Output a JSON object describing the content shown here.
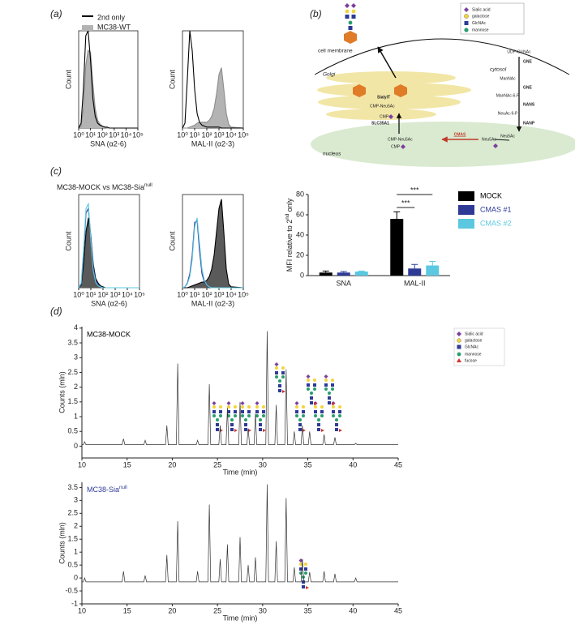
{
  "panels": {
    "a": {
      "label": "(a)"
    },
    "b": {
      "label": "(b)"
    },
    "c": {
      "label": "(c)",
      "title": {
        "text": "MC38-MOCK vs MC38-Sia",
        "sup": "null"
      }
    },
    "d": {
      "label": "(d)",
      "legend": [
        "Sialic acid",
        "galactose",
        "GlcNAc",
        "mannose",
        "fucose"
      ]
    }
  },
  "diagram": {
    "legend": [
      "Sialic acid",
      "galactose",
      "GlcNAc",
      "mannose"
    ],
    "cell_membrane": "cell membrane",
    "cytosol": "cytosol",
    "golgi": "Golgi",
    "nucleus": "nucleus",
    "pathway": [
      "UDP-GlcNAc",
      "ManNAc",
      "ManNAc-6-P",
      "NeuAc-9-P",
      "Neu5Ac"
    ],
    "enzymes": [
      "GNE",
      "GNE",
      "NANS",
      "NANP"
    ],
    "sialylt": "SialylT",
    "golgi_cmp_neu5ac": "CMP-Neu5Ac",
    "golgi_cmp": "CMP",
    "slc35a1": "SLC35A1",
    "nucleus_cmp_neu5ac": "CMP-Neu5Ac",
    "nucleus_cmp": "CMP",
    "cmas": "CMAS",
    "nucleus_neu5ac": "Neu5Ac"
  },
  "chart_data": [
    {
      "type": "line",
      "xscale": "log",
      "frame": true,
      "legend": "upper left",
      "x": [
        1,
        1.6,
        2.5,
        4,
        6.3,
        10,
        16,
        25,
        40,
        63,
        100,
        160,
        250,
        400,
        630,
        1000,
        1600,
        2500,
        4000,
        6300,
        10000,
        100000
      ],
      "xlim": [
        1,
        100000
      ],
      "xticks": [
        {
          "value": 1,
          "label": "10⁰"
        },
        {
          "value": 10,
          "label": "10¹"
        },
        {
          "value": 100,
          "label": "10²"
        },
        {
          "value": 1000,
          "label": "10³"
        },
        {
          "value": 10000,
          "label": "10⁴"
        },
        {
          "value": 100000,
          "label": "10⁵"
        }
      ],
      "ylim": [
        0,
        100
      ],
      "xlabel": "SNA (α2-6)",
      "ylabel": "Count",
      "series": [
        {
          "name": "MC38-WT",
          "color": "#8c8c8c",
          "fill": "#b3b3b3",
          "values": [
            0,
            2,
            20,
            65,
            80,
            78,
            45,
            20,
            8,
            4,
            2,
            1,
            0,
            0,
            0,
            0,
            0,
            0,
            0,
            0,
            0,
            0
          ]
        },
        {
          "name": "2nd only",
          "color": "#000000",
          "values": [
            0,
            5,
            40,
            95,
            100,
            70,
            30,
            12,
            5,
            3,
            2,
            1,
            1,
            0,
            0,
            0,
            0,
            0,
            0,
            0,
            0,
            0
          ]
        }
      ]
    },
    {
      "type": "line",
      "xscale": "log",
      "frame": true,
      "x": [
        1,
        1.6,
        2.5,
        4,
        6.3,
        10,
        16,
        25,
        40,
        63,
        100,
        160,
        250,
        400,
        630,
        1000,
        1600,
        2500,
        4000,
        6300,
        10000,
        100000
      ],
      "xlim": [
        1,
        100000
      ],
      "xticks": [
        {
          "value": 1,
          "label": "10⁰"
        },
        {
          "value": 10,
          "label": "10¹"
        },
        {
          "value": 100,
          "label": "10²"
        },
        {
          "value": 1000,
          "label": "10³"
        },
        {
          "value": 10000,
          "label": "10⁴"
        },
        {
          "value": 100000,
          "label": "10⁵"
        }
      ],
      "ylim": [
        0,
        100
      ],
      "xlabel": "MAL-II (α2-3)",
      "ylabel": "Count",
      "series": [
        {
          "color": "#8c8c8c",
          "fill": "#b3b3b3",
          "values": [
            0,
            0,
            0,
            1,
            2,
            3,
            5,
            6,
            6,
            6,
            6,
            8,
            12,
            20,
            35,
            55,
            62,
            40,
            15,
            4,
            1,
            0
          ]
        },
        {
          "color": "#000000",
          "values": [
            0,
            5,
            50,
            100,
            80,
            40,
            15,
            6,
            3,
            2,
            1,
            1,
            1,
            1,
            1,
            1,
            0,
            0,
            0,
            0,
            0,
            0
          ]
        }
      ]
    },
    {
      "type": "line",
      "xscale": "log",
      "frame": true,
      "x": [
        1,
        1.6,
        2.5,
        4,
        6.3,
        10,
        16,
        25,
        40,
        63,
        100,
        160,
        250,
        400,
        630,
        1000,
        1600,
        2500,
        4000,
        6300,
        10000,
        100000
      ],
      "xlim": [
        1,
        100000
      ],
      "xticks": [
        {
          "value": 1,
          "label": "10⁰"
        },
        {
          "value": 10,
          "label": "10¹"
        },
        {
          "value": 100,
          "label": "10²"
        },
        {
          "value": 1000,
          "label": "10³"
        },
        {
          "value": 10000,
          "label": "10⁴"
        },
        {
          "value": 100000,
          "label": "10⁵"
        }
      ],
      "ylim": [
        0,
        100
      ],
      "xlabel": "SNA (α2-6)",
      "ylabel": "Count",
      "series": [
        {
          "color": "#000000",
          "fill": "#5a5a5a",
          "values": [
            0,
            3,
            25,
            60,
            75,
            55,
            25,
            10,
            5,
            2,
            1,
            0,
            0,
            0,
            0,
            0,
            0,
            0,
            0,
            0,
            0,
            0
          ]
        },
        {
          "color": "#2e3a96",
          "values": [
            0,
            4,
            35,
            80,
            85,
            55,
            22,
            8,
            3,
            1,
            0,
            0,
            0,
            0,
            0,
            0,
            0,
            0,
            0,
            0,
            0,
            0
          ]
        },
        {
          "color": "#5bc8e0",
          "values": [
            0,
            5,
            40,
            85,
            90,
            50,
            18,
            6,
            2,
            1,
            0,
            0,
            0,
            0,
            0,
            0,
            0,
            0,
            0,
            0,
            0,
            0
          ]
        }
      ]
    },
    {
      "type": "line",
      "xscale": "log",
      "frame": true,
      "x": [
        1,
        1.6,
        2.5,
        4,
        6.3,
        10,
        16,
        25,
        40,
        63,
        100,
        160,
        250,
        400,
        630,
        1000,
        1600,
        2500,
        4000,
        6300,
        10000,
        100000
      ],
      "xlim": [
        1,
        100000
      ],
      "xticks": [
        {
          "value": 1,
          "label": "10⁰"
        },
        {
          "value": 10,
          "label": "10¹"
        },
        {
          "value": 100,
          "label": "10²"
        },
        {
          "value": 1000,
          "label": "10³"
        },
        {
          "value": 10000,
          "label": "10⁴"
        },
        {
          "value": 100000,
          "label": "10⁵"
        }
      ],
      "ylim": [
        0,
        100
      ],
      "xlabel": "MAL-II (α2-3)",
      "ylabel": "Count",
      "series": [
        {
          "color": "#000000",
          "fill": "#5a5a5a",
          "values": [
            0,
            0,
            0,
            1,
            2,
            3,
            4,
            5,
            6,
            6,
            8,
            12,
            20,
            35,
            60,
            85,
            95,
            60,
            20,
            4,
            1,
            0
          ]
        },
        {
          "color": "#2e3a96",
          "values": [
            0,
            1,
            5,
            15,
            35,
            70,
            72,
            40,
            15,
            6,
            3,
            1,
            0,
            0,
            0,
            0,
            0,
            0,
            0,
            0,
            0,
            0
          ]
        },
        {
          "color": "#5bc8e0",
          "values": [
            0,
            1,
            4,
            12,
            30,
            65,
            75,
            48,
            20,
            8,
            3,
            1,
            0,
            0,
            0,
            0,
            0,
            0,
            0,
            0,
            0,
            0
          ]
        }
      ]
    },
    {
      "type": "bar",
      "categories": [
        "SNA",
        "MAL-II"
      ],
      "ylim": [
        0,
        80
      ],
      "yticks": [
        0,
        20,
        40,
        60,
        80
      ],
      "legend": "right",
      "ylabel": {
        "text": "MFI relative to 2",
        "sup": "nd",
        "tail": " only"
      },
      "annotations": [
        "***",
        "***"
      ],
      "series": [
        {
          "name": "MOCK",
          "color": "#000000",
          "values": [
            3,
            56
          ],
          "errors": [
            1.5,
            7
          ]
        },
        {
          "name": "CMAS #1",
          "color": "#2e3a96",
          "values": [
            3,
            7
          ],
          "errors": [
            1,
            4
          ]
        },
        {
          "name": "CMAS #2",
          "color": "#5bc8e0",
          "values": [
            4,
            10
          ],
          "errors": [
            0.5,
            4
          ]
        }
      ]
    },
    {
      "type": "line",
      "title": "MC38-MOCK",
      "title_color": "#000000",
      "xlim": [
        10,
        45
      ],
      "xticks": [
        10,
        15,
        20,
        25,
        30,
        35,
        40,
        45
      ],
      "ylim": [
        -0.4,
        4.05
      ],
      "yticks": [
        0,
        0.5,
        1,
        1.5,
        2,
        2.5,
        3,
        3.5,
        4
      ],
      "xlabel": "Time (min)",
      "ylabel": "Counts (mln)",
      "series": [
        {
          "color": "#333333",
          "x": [
            10,
            10.15,
            10.3,
            10.45,
            14.45,
            14.6,
            14.75,
            16.85,
            17,
            17.15,
            19.25,
            19.4,
            19.55,
            20.45,
            20.6,
            20.75,
            22.65,
            22.8,
            22.95,
            23.95,
            24.1,
            24.25,
            25.15,
            25.3,
            25.45,
            25.95,
            26.1,
            26.25,
            27.35,
            27.5,
            27.65,
            28.25,
            28.4,
            28.55,
            29.05,
            29.2,
            29.35,
            30.35,
            30.5,
            30.65,
            31.35,
            31.5,
            31.65,
            32.45,
            32.6,
            32.75,
            33.35,
            33.5,
            33.65,
            34.25,
            34.4,
            34.55,
            35.05,
            35.2,
            35.35,
            36.65,
            36.8,
            36.95,
            37.85,
            38,
            38.15,
            40.15,
            40.3,
            40.45,
            45
          ],
          "values": [
            0.05,
            0.05,
            0.15,
            0.05,
            0.05,
            0.25,
            0.05,
            0.05,
            0.2,
            0.05,
            0.05,
            0.7,
            0.05,
            0.05,
            2.8,
            0.05,
            0.05,
            0.2,
            0.05,
            0.05,
            2.1,
            0.05,
            0.05,
            0.7,
            0.05,
            0.05,
            1.3,
            0.05,
            0.05,
            1.5,
            0.05,
            0.05,
            0.6,
            0.05,
            0.05,
            1.1,
            0.05,
            0.05,
            3.9,
            0.05,
            0.05,
            1.4,
            0.05,
            0.05,
            2.6,
            0.05,
            0.05,
            0.5,
            0.05,
            0.05,
            0.7,
            0.05,
            0.05,
            0.5,
            0.05,
            0.05,
            0.4,
            0.05,
            0.05,
            0.3,
            0.05,
            0.05,
            0.1,
            0.05,
            0.05
          ]
        }
      ]
    },
    {
      "type": "line",
      "title": {
        "text": "MC38-Sia",
        "sup": "null"
      },
      "title_color": "#2e3a96",
      "xlim": [
        10,
        45
      ],
      "xticks": [
        10,
        15,
        20,
        25,
        30,
        35,
        40,
        45
      ],
      "ylim": [
        -1,
        3.7
      ],
      "yticks": [
        -1,
        -0.5,
        0,
        0.5,
        1,
        1.5,
        2,
        2.5,
        3,
        3.5
      ],
      "xlabel": "Time (min)",
      "ylabel": "Counts (mln)",
      "series": [
        {
          "color": "#333333",
          "x": [
            10,
            10.15,
            10.3,
            10.45,
            14.45,
            14.6,
            14.75,
            16.85,
            17,
            17.15,
            19.25,
            19.4,
            19.55,
            20.45,
            20.6,
            20.75,
            22.65,
            22.8,
            22.95,
            23.95,
            24.1,
            24.25,
            25.15,
            25.3,
            25.45,
            25.95,
            26.1,
            26.25,
            27.35,
            27.5,
            27.65,
            28.25,
            28.4,
            28.55,
            29.05,
            29.2,
            29.35,
            30.35,
            30.5,
            30.65,
            31.35,
            31.5,
            31.65,
            32.45,
            32.6,
            32.75,
            33.35,
            33.5,
            33.65,
            34.25,
            34.4,
            34.55,
            35.05,
            35.2,
            35.35,
            36.65,
            36.8,
            36.95,
            37.85,
            38,
            38.15,
            40.15,
            40.3,
            40.45,
            45
          ],
          "values": [
            -0.15,
            -0.15,
            0,
            -0.15,
            -0.15,
            0.26,
            -0.15,
            -0.15,
            0.1,
            -0.15,
            -0.15,
            0.89,
            -0.15,
            -0.15,
            2.2,
            -0.15,
            -0.15,
            0.26,
            -0.15,
            -0.15,
            2.84,
            -0.15,
            -0.15,
            0.73,
            -0.15,
            -0.15,
            1.3,
            -0.15,
            -0.15,
            1.58,
            -0.15,
            -0.15,
            0.5,
            -0.15,
            -0.15,
            0.8,
            -0.15,
            -0.15,
            3.62,
            -0.15,
            -0.15,
            1.42,
            -0.15,
            -0.15,
            3.09,
            -0.15,
            -0.15,
            0.41,
            -0.15,
            -0.15,
            0.73,
            -0.15,
            -0.15,
            0.23,
            -0.15,
            -0.15,
            0.26,
            -0.15,
            -0.15,
            0.16,
            -0.15,
            -0.15,
            0,
            -0.15,
            -0.15
          ]
        }
      ]
    }
  ]
}
